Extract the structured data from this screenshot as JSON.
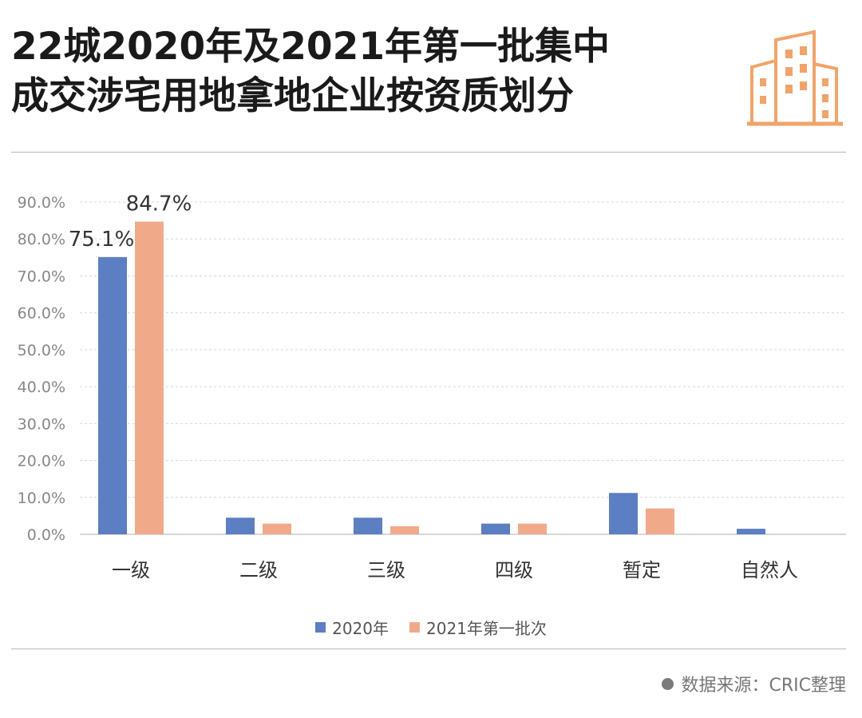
{
  "header": {
    "title_line1": "22城2020年及2021年第一批集中",
    "title_line2": "成交涉宅用地拿地企业按资质划分"
  },
  "logo": {
    "icon": "buildings-icon",
    "color": "#F0A46A"
  },
  "colors": {
    "series_2020": "#5B7FC2",
    "series_2021": "#F0AA8A",
    "grid": "#d8d8d8",
    "axis": "#cccccc"
  },
  "legend": {
    "label_2020": "2020年",
    "label_2021": "2021年第一批次"
  },
  "source": {
    "text": "数据来源：CRIC整理"
  },
  "chart_data": {
    "type": "bar",
    "categories": [
      "一级",
      "二级",
      "三级",
      "四级",
      "暂定",
      "自然人"
    ],
    "series": [
      {
        "name": "2020年",
        "values": [
          75.1,
          4.5,
          4.5,
          2.9,
          11.2,
          1.5
        ]
      },
      {
        "name": "2021年第一批次",
        "values": [
          84.7,
          2.9,
          2.2,
          2.9,
          7.0,
          0
        ]
      }
    ],
    "data_labels": [
      "75.1%",
      "84.7%"
    ],
    "yticks": [
      "0.0%",
      "10.0%",
      "20.0%",
      "30.0%",
      "40.0%",
      "50.0%",
      "60.0%",
      "70.0%",
      "80.0%",
      "90.0%"
    ],
    "ylim": [
      0,
      90
    ],
    "grid": true,
    "legend_position": "bottom"
  }
}
